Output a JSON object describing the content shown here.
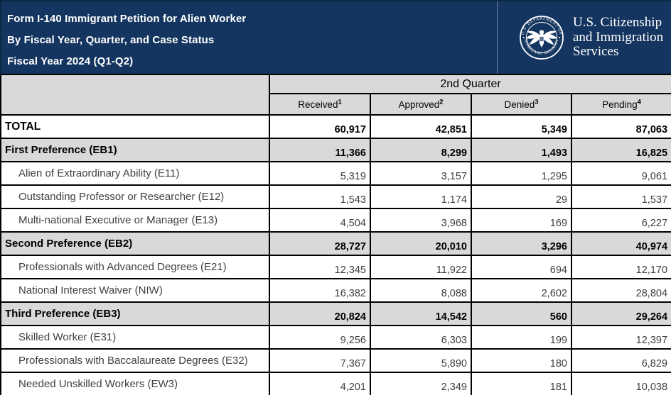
{
  "header": {
    "title_lines": [
      "Form I-140 Immigrant Petition for Alien Worker",
      "By Fiscal Year, Quarter, and Case Status",
      "Fiscal Year 2024 (Q1-Q2)"
    ],
    "agency": {
      "seal": "dhs-seal",
      "seal_text_top": "U.S. DEPARTMENT OF",
      "seal_text_bottom": "HOMELAND SECURITY",
      "name_lines": [
        "U.S. Citizenship",
        "and Immigration",
        "Services"
      ]
    },
    "colors": {
      "banner_navy": "#14355f",
      "header_gray": "#d9d9d9",
      "border_black": "#000000",
      "sub_row_text": "#404040"
    }
  },
  "table": {
    "quarter_header": "2nd Quarter",
    "columns": [
      {
        "label": "Received",
        "footnote": "1"
      },
      {
        "label": "Approved",
        "footnote": "2"
      },
      {
        "label": "Denied",
        "footnote": "3"
      },
      {
        "label": "Pending",
        "footnote": "4"
      }
    ],
    "rows": [
      {
        "code": "total",
        "level": "total",
        "label": "TOTAL",
        "values": [
          "60,917",
          "42,851",
          "5,349",
          "87,063"
        ]
      },
      {
        "code": "eb1",
        "level": "section",
        "label": "First Preference (EB1)",
        "values": [
          "11,366",
          "8,299",
          "1,493",
          "16,825"
        ]
      },
      {
        "code": "e11",
        "level": "sub",
        "label": "Alien of Extraordinary Ability (E11)",
        "values": [
          "5,319",
          "3,157",
          "1,295",
          "9,061"
        ]
      },
      {
        "code": "e12",
        "level": "sub",
        "label": "Outstanding Professor or Researcher (E12)",
        "values": [
          "1,543",
          "1,174",
          "29",
          "1,537"
        ]
      },
      {
        "code": "e13",
        "level": "sub",
        "label": "Multi-national Executive or Manager (E13)",
        "values": [
          "4,504",
          "3,968",
          "169",
          "6,227"
        ]
      },
      {
        "code": "eb2",
        "level": "section",
        "label": "Second Preference (EB2)",
        "values": [
          "28,727",
          "20,010",
          "3,296",
          "40,974"
        ]
      },
      {
        "code": "e21",
        "level": "sub",
        "label": "Professionals with Advanced Degrees (E21)",
        "values": [
          "12,345",
          "11,922",
          "694",
          "12,170"
        ]
      },
      {
        "code": "niw",
        "level": "sub",
        "label": "National Interest Waiver (NIW)",
        "values": [
          "16,382",
          "8,088",
          "2,602",
          "28,804"
        ]
      },
      {
        "code": "eb3",
        "level": "section",
        "label": "Third Preference (EB3)",
        "values": [
          "20,824",
          "14,542",
          "560",
          "29,264"
        ]
      },
      {
        "code": "e31",
        "level": "sub",
        "label": "Skilled Worker (E31)",
        "values": [
          "9,256",
          "6,303",
          "199",
          "12,397"
        ]
      },
      {
        "code": "e32",
        "level": "sub",
        "label": "Professionals with Baccalaureate Degrees (E32)",
        "values": [
          "7,367",
          "5,890",
          "180",
          "6,829"
        ]
      },
      {
        "code": "ew3",
        "level": "sub",
        "label": "Needed Unskilled Workers (EW3)",
        "values": [
          "4,201",
          "2,349",
          "181",
          "10,038"
        ]
      }
    ]
  }
}
